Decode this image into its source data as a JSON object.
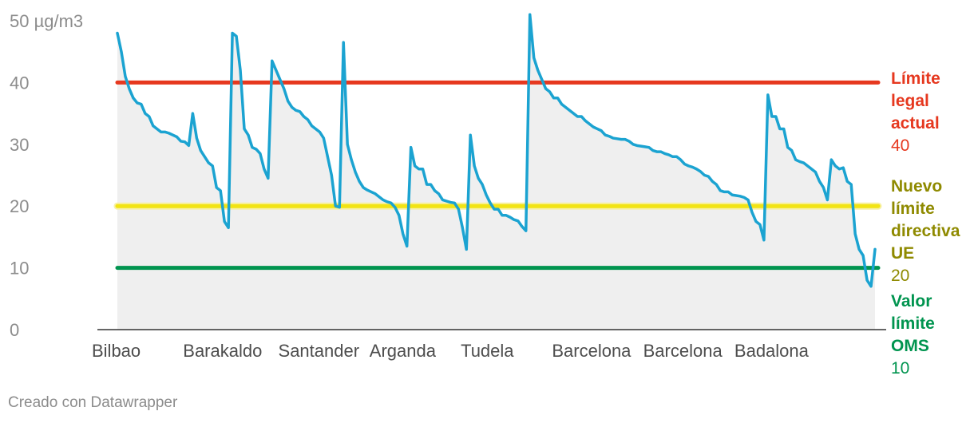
{
  "chart_data": {
    "type": "area",
    "ylim": [
      0,
      50
    ],
    "y_ticks": [
      {
        "value": 0,
        "label": "0"
      },
      {
        "value": 10,
        "label": "10"
      },
      {
        "value": 20,
        "label": "20"
      },
      {
        "value": 30,
        "label": "30"
      },
      {
        "value": 40,
        "label": "40"
      },
      {
        "value": 50,
        "label": "50 µg/m3"
      }
    ],
    "x_labels": [
      {
        "index": 0,
        "label": "Bilbao"
      },
      {
        "index": 23,
        "label": "Barakaldo"
      },
      {
        "index": 47,
        "label": "Santander"
      },
      {
        "index": 70,
        "label": "Arganda"
      },
      {
        "index": 93,
        "label": "Tudela"
      },
      {
        "index": 116,
        "label": "Barcelona"
      },
      {
        "index": 139,
        "label": "Barcelona"
      },
      {
        "index": 162,
        "label": "Badalona"
      }
    ],
    "series_color": "#1ba3d1",
    "area_color": "#efefef",
    "values": [
      48,
      45,
      41,
      39,
      37.5,
      36.7,
      36.5,
      35,
      34.5,
      33,
      32.5,
      32,
      32,
      31.8,
      31.5,
      31.2,
      30.5,
      30.4,
      29.8,
      35,
      31,
      29,
      28,
      27,
      26.5,
      23,
      22.5,
      17.5,
      16.5,
      48,
      47.5,
      42,
      32.5,
      31.5,
      29.5,
      29.2,
      28.5,
      26,
      24.5,
      43.5,
      42,
      40.5,
      39,
      37,
      36,
      35.5,
      35.3,
      34.5,
      34,
      33,
      32.5,
      32,
      31,
      28,
      25,
      20,
      19.8,
      46.5,
      30,
      27.5,
      25.5,
      24,
      23,
      22.6,
      22.3,
      22,
      21.5,
      21,
      20.7,
      20.5,
      19.8,
      18.5,
      15.5,
      13.5,
      29.5,
      26.5,
      26,
      26,
      23.5,
      23.5,
      22.5,
      22,
      21,
      20.8,
      20.6,
      20.5,
      19.5,
      16.5,
      13,
      31.5,
      26.5,
      24.5,
      23.5,
      21.8,
      20.5,
      19.5,
      19.5,
      18.5,
      18.5,
      18.2,
      17.8,
      17.6,
      16.7,
      16,
      51,
      44,
      42,
      40.5,
      39,
      38.5,
      37.5,
      37.5,
      36.5,
      36,
      35.5,
      35,
      34.5,
      34.5,
      33.8,
      33.3,
      32.8,
      32.5,
      32.2,
      31.5,
      31.3,
      31,
      30.9,
      30.8,
      30.8,
      30.5,
      30,
      29.8,
      29.7,
      29.6,
      29.5,
      29,
      28.8,
      28.8,
      28.5,
      28.3,
      28,
      28,
      27.5,
      26.8,
      26.5,
      26.3,
      26,
      25.6,
      25,
      24.8,
      24,
      23.5,
      22.5,
      22.3,
      22.3,
      21.8,
      21.7,
      21.6,
      21.4,
      21,
      19,
      17.5,
      17,
      14.5,
      38,
      34.5,
      34.5,
      32.5,
      32.5,
      29.5,
      29,
      27.5,
      27.2,
      27,
      26.5,
      26,
      25.5,
      24,
      23,
      21,
      27.5,
      26.5,
      26,
      26.2,
      24,
      23.5,
      15.5,
      13,
      12,
      8,
      7,
      13
    ]
  },
  "reference_lines": [
    {
      "value": 40,
      "color": "#e6381f",
      "label_lines": [
        "Límite",
        "legal",
        "actual"
      ],
      "value_label": "40"
    },
    {
      "value": 20,
      "color": "#f2e413",
      "text_color": "#8f8a00",
      "label_lines": [
        "Nuevo",
        "límite",
        "directiva",
        "UE"
      ],
      "value_label": "20"
    },
    {
      "value": 10,
      "color": "#00944f",
      "label_lines": [
        "Valor",
        "límite",
        "OMS"
      ],
      "value_label": "10"
    }
  ],
  "credit": "Creado con Datawrapper"
}
